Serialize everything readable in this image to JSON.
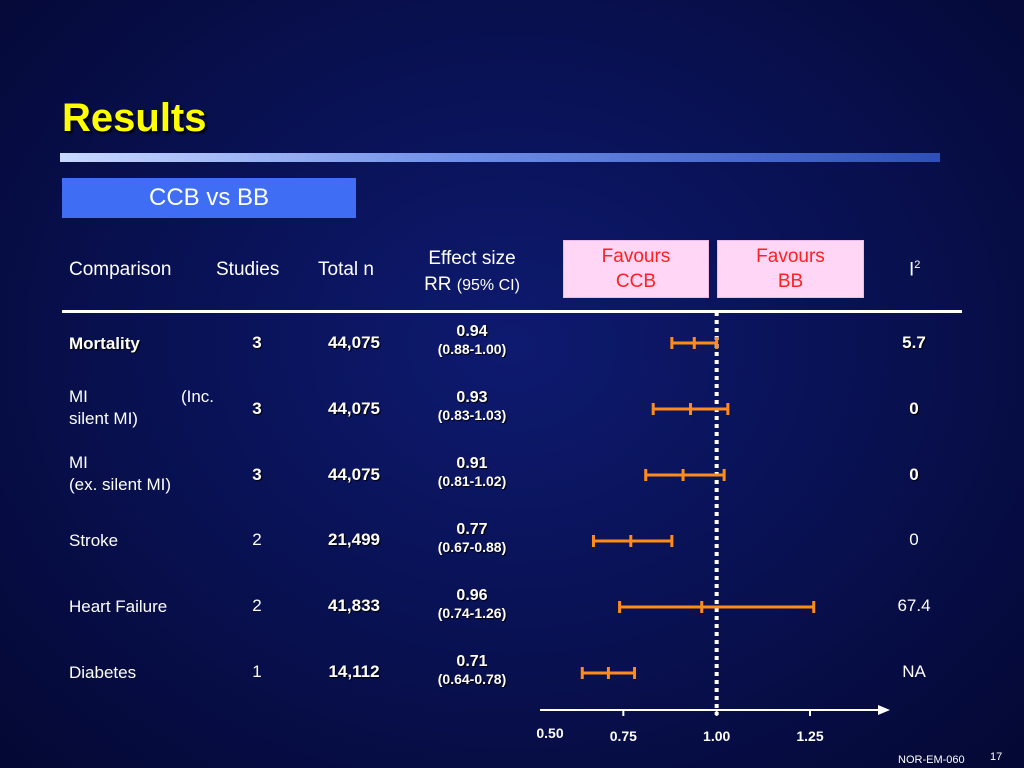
{
  "title": "Results",
  "subtitle": "CCB vs BB",
  "headers": {
    "comparison": "Comparison",
    "studies": "Studies",
    "total_n": "Total n",
    "effect_line1": "Effect size",
    "effect_rr": "RR",
    "effect_ci": "(95% CI)",
    "favours_ccb_1": "Favours",
    "favours_ccb_2": "CCB",
    "favours_bb_1": "Favours",
    "favours_bb_2": "BB",
    "i2_base": "I",
    "i2_sup": "2"
  },
  "rows": [
    {
      "comparison_l1": "Mortality",
      "comparison_l2": "",
      "studies": "3",
      "total_n": "44,075",
      "rr": "0.94",
      "ci": "(0.88-1.00)",
      "i2": "5.7"
    },
    {
      "comparison_l1a": "MI",
      "comparison_l1b": "(Inc.",
      "comparison_l2": "silent MI)",
      "studies": "3",
      "total_n": "44,075",
      "rr": "0.93",
      "ci": "(0.83-1.03)",
      "i2": "0"
    },
    {
      "comparison_l1": "MI",
      "comparison_l2": "(ex. silent MI)",
      "studies": "3",
      "total_n": "44,075",
      "rr": "0.91",
      "ci": "(0.81-1.02)",
      "i2": "0"
    },
    {
      "comparison_l1": "Stroke",
      "comparison_l2": "",
      "studies": "2",
      "total_n": "21,499",
      "rr": "0.77",
      "ci": "(0.67-0.88)",
      "i2": "0"
    },
    {
      "comparison_l1": "Heart Failure",
      "comparison_l2": "",
      "studies": "2",
      "total_n": "41,833",
      "rr": "0.96",
      "ci": "(0.74-1.26)",
      "i2": "67.4"
    },
    {
      "comparison_l1": "Diabetes",
      "comparison_l2": "",
      "studies": "1",
      "total_n": "14,112",
      "rr": "0.71",
      "ci": "(0.64-0.78)",
      "i2": "NA"
    }
  ],
  "chart_data": {
    "type": "forest",
    "categories": [
      "Mortality",
      "MI (Inc. silent MI)",
      "MI (ex. silent MI)",
      "Stroke",
      "Heart Failure",
      "Diabetes"
    ],
    "point": [
      0.94,
      0.93,
      0.91,
      0.77,
      0.96,
      0.71
    ],
    "lower": [
      0.88,
      0.83,
      0.81,
      0.67,
      0.74,
      0.64
    ],
    "upper": [
      1.0,
      1.03,
      1.02,
      0.88,
      1.26,
      0.78
    ],
    "reference_line": 1.0,
    "x_ticks": [
      "0.50",
      "0.75",
      "1.00",
      "1.25"
    ],
    "xlim": [
      0.5,
      1.25
    ],
    "colors": {
      "interval": "#ff8c1a",
      "reference": "#ffffff",
      "axis": "#ffffff"
    }
  },
  "footer": {
    "code": "NOR-EM-060",
    "page": "17"
  }
}
